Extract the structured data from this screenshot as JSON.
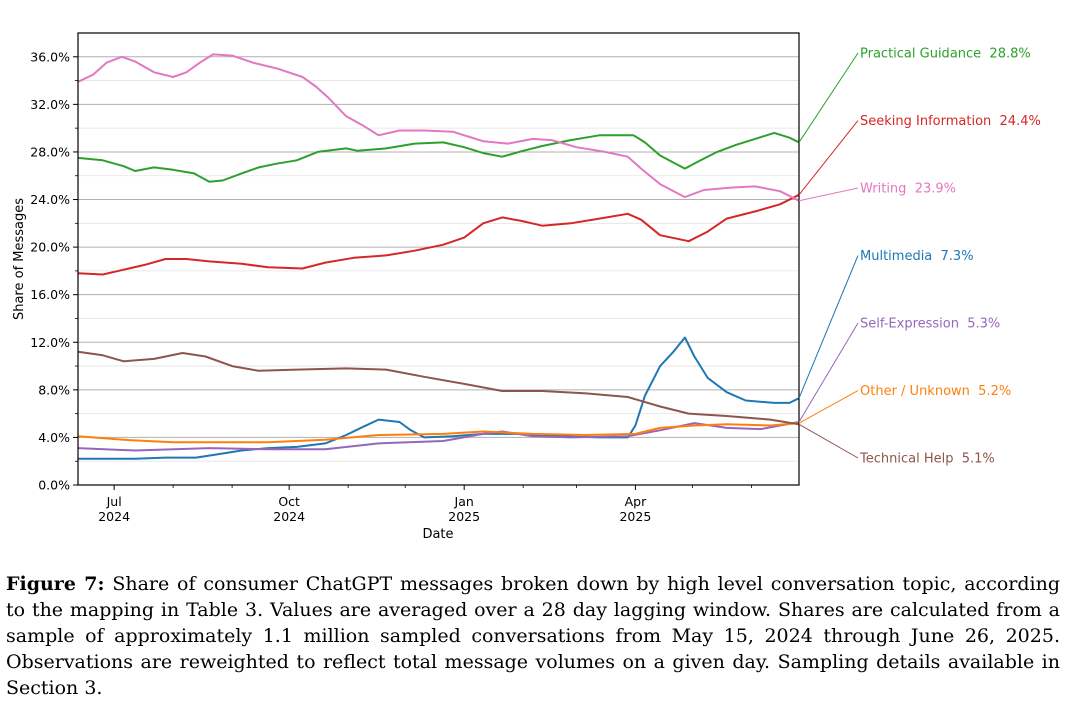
{
  "chart_data": {
    "type": "line",
    "xlabel": "Date",
    "ylabel": "Share of Messages",
    "x_range": [
      "2024-06-12",
      "2025-06-26"
    ],
    "ylim": [
      0,
      0.38
    ],
    "y_ticks": [
      0,
      0.04,
      0.08,
      0.12,
      0.16,
      0.2,
      0.24,
      0.28,
      0.32,
      0.36
    ],
    "y_tick_labels": [
      "0.0%",
      "4.0%",
      "8.0%",
      "12.0%",
      "16.0%",
      "20.0%",
      "24.0%",
      "28.0%",
      "32.0%",
      "36.0%"
    ],
    "x_major_ticks": [
      {
        "date": "2024-07-01",
        "label1": "Jul",
        "label2": "2024"
      },
      {
        "date": "2024-10-01",
        "label1": "Oct",
        "label2": "2024"
      },
      {
        "date": "2025-01-01",
        "label1": "Jan",
        "label2": "2025"
      },
      {
        "date": "2025-04-01",
        "label1": "Apr",
        "label2": "2025"
      }
    ],
    "x_minor_ticks": [
      "2024-08-01",
      "2024-09-01",
      "2024-11-01",
      "2024-12-01",
      "2025-02-01",
      "2025-03-01",
      "2025-05-01",
      "2025-06-01"
    ],
    "grid": "horizontal",
    "legend": "right-side labels",
    "series": [
      {
        "name": "Practical Guidance",
        "end_label": "Practical Guidance  28.8%",
        "color": "#2ca02c",
        "points": [
          [
            "2024-06-12",
            0.275
          ],
          [
            "2024-06-25",
            0.273
          ],
          [
            "2024-07-06",
            0.268
          ],
          [
            "2024-07-12",
            0.264
          ],
          [
            "2024-07-22",
            0.267
          ],
          [
            "2024-08-01",
            0.265
          ],
          [
            "2024-08-12",
            0.262
          ],
          [
            "2024-08-20",
            0.255
          ],
          [
            "2024-08-27",
            0.256
          ],
          [
            "2024-09-06",
            0.262
          ],
          [
            "2024-09-15",
            0.267
          ],
          [
            "2024-09-24",
            0.27
          ],
          [
            "2024-10-05",
            0.273
          ],
          [
            "2024-10-16",
            0.28
          ],
          [
            "2024-10-31",
            0.283
          ],
          [
            "2024-11-06",
            0.281
          ],
          [
            "2024-11-21",
            0.283
          ],
          [
            "2024-12-06",
            0.287
          ],
          [
            "2024-12-21",
            0.288
          ],
          [
            "2025-01-01",
            0.284
          ],
          [
            "2025-01-11",
            0.279
          ],
          [
            "2025-01-21",
            0.276
          ],
          [
            "2025-02-01",
            0.281
          ],
          [
            "2025-02-11",
            0.285
          ],
          [
            "2025-02-26",
            0.29
          ],
          [
            "2025-03-13",
            0.294
          ],
          [
            "2025-03-31",
            0.294
          ],
          [
            "2025-04-06",
            0.288
          ],
          [
            "2025-04-14",
            0.277
          ],
          [
            "2025-04-27",
            0.266
          ],
          [
            "2025-05-04",
            0.272
          ],
          [
            "2025-05-14",
            0.28
          ],
          [
            "2025-05-24",
            0.286
          ],
          [
            "2025-06-03",
            0.291
          ],
          [
            "2025-06-13",
            0.296
          ],
          [
            "2025-06-21",
            0.292
          ],
          [
            "2025-06-26",
            0.288
          ]
        ]
      },
      {
        "name": "Seeking Information",
        "end_label": "Seeking Information  24.4%",
        "color": "#d62728",
        "points": [
          [
            "2024-06-12",
            0.178
          ],
          [
            "2024-06-25",
            0.177
          ],
          [
            "2024-07-06",
            0.181
          ],
          [
            "2024-07-17",
            0.185
          ],
          [
            "2024-07-28",
            0.19
          ],
          [
            "2024-08-08",
            0.19
          ],
          [
            "2024-08-20",
            0.188
          ],
          [
            "2024-09-06",
            0.186
          ],
          [
            "2024-09-20",
            0.183
          ],
          [
            "2024-10-08",
            0.182
          ],
          [
            "2024-10-20",
            0.187
          ],
          [
            "2024-11-04",
            0.191
          ],
          [
            "2024-11-21",
            0.193
          ],
          [
            "2024-12-06",
            0.197
          ],
          [
            "2024-12-21",
            0.202
          ],
          [
            "2025-01-01",
            0.208
          ],
          [
            "2025-01-11",
            0.22
          ],
          [
            "2025-01-21",
            0.225
          ],
          [
            "2025-01-31",
            0.222
          ],
          [
            "2025-02-11",
            0.218
          ],
          [
            "2025-02-26",
            0.22
          ],
          [
            "2025-03-13",
            0.224
          ],
          [
            "2025-03-28",
            0.228
          ],
          [
            "2025-04-04",
            0.223
          ],
          [
            "2025-04-14",
            0.21
          ],
          [
            "2025-04-29",
            0.205
          ],
          [
            "2025-05-09",
            0.213
          ],
          [
            "2025-05-19",
            0.224
          ],
          [
            "2025-06-03",
            0.23
          ],
          [
            "2025-06-16",
            0.236
          ],
          [
            "2025-06-26",
            0.244
          ]
        ]
      },
      {
        "name": "Writing",
        "end_label": "Writing  23.9%",
        "color": "#e377c2",
        "points": [
          [
            "2024-06-12",
            0.339
          ],
          [
            "2024-06-20",
            0.345
          ],
          [
            "2024-06-27",
            0.355
          ],
          [
            "2024-07-05",
            0.36
          ],
          [
            "2024-07-12",
            0.356
          ],
          [
            "2024-07-22",
            0.347
          ],
          [
            "2024-08-01",
            0.343
          ],
          [
            "2024-08-08",
            0.347
          ],
          [
            "2024-08-15",
            0.355
          ],
          [
            "2024-08-22",
            0.362
          ],
          [
            "2024-09-01",
            0.361
          ],
          [
            "2024-09-12",
            0.355
          ],
          [
            "2024-09-25",
            0.35
          ],
          [
            "2024-10-08",
            0.343
          ],
          [
            "2024-10-15",
            0.335
          ],
          [
            "2024-10-22",
            0.325
          ],
          [
            "2024-10-31",
            0.31
          ],
          [
            "2024-11-09",
            0.302
          ],
          [
            "2024-11-17",
            0.294
          ],
          [
            "2024-11-28",
            0.298
          ],
          [
            "2024-12-11",
            0.298
          ],
          [
            "2024-12-26",
            0.297
          ],
          [
            "2025-01-03",
            0.293
          ],
          [
            "2025-01-11",
            0.289
          ],
          [
            "2025-01-24",
            0.287
          ],
          [
            "2025-02-06",
            0.291
          ],
          [
            "2025-02-16",
            0.29
          ],
          [
            "2025-03-01",
            0.284
          ],
          [
            "2025-03-16",
            0.28
          ],
          [
            "2025-03-28",
            0.276
          ],
          [
            "2025-04-04",
            0.266
          ],
          [
            "2025-04-14",
            0.253
          ],
          [
            "2025-04-27",
            0.242
          ],
          [
            "2025-05-07",
            0.248
          ],
          [
            "2025-05-21",
            0.25
          ],
          [
            "2025-06-03",
            0.251
          ],
          [
            "2025-06-16",
            0.247
          ],
          [
            "2025-06-26",
            0.239
          ]
        ]
      },
      {
        "name": "Multimedia",
        "end_label": "Multimedia  7.3%",
        "color": "#1f77b4",
        "points": [
          [
            "2024-06-12",
            0.022
          ],
          [
            "2024-06-25",
            0.022
          ],
          [
            "2024-07-12",
            0.022
          ],
          [
            "2024-07-28",
            0.023
          ],
          [
            "2024-08-13",
            0.023
          ],
          [
            "2024-08-25",
            0.026
          ],
          [
            "2024-09-06",
            0.029
          ],
          [
            "2024-09-20",
            0.031
          ],
          [
            "2024-10-05",
            0.032
          ],
          [
            "2024-10-20",
            0.035
          ],
          [
            "2024-10-31",
            0.042
          ],
          [
            "2024-11-09",
            0.049
          ],
          [
            "2024-11-17",
            0.055
          ],
          [
            "2024-11-28",
            0.053
          ],
          [
            "2024-12-04",
            0.046
          ],
          [
            "2024-12-11",
            0.04
          ],
          [
            "2024-12-26",
            0.041
          ],
          [
            "2025-01-11",
            0.043
          ],
          [
            "2025-01-31",
            0.043
          ],
          [
            "2025-02-21",
            0.041
          ],
          [
            "2025-03-13",
            0.04
          ],
          [
            "2025-03-28",
            0.04
          ],
          [
            "2025-04-01",
            0.05
          ],
          [
            "2025-04-06",
            0.075
          ],
          [
            "2025-04-14",
            0.1
          ],
          [
            "2025-04-21",
            0.112
          ],
          [
            "2025-04-27",
            0.124
          ],
          [
            "2025-05-02",
            0.108
          ],
          [
            "2025-05-09",
            0.09
          ],
          [
            "2025-05-19",
            0.078
          ],
          [
            "2025-05-29",
            0.071
          ],
          [
            "2025-06-13",
            0.069
          ],
          [
            "2025-06-21",
            0.069
          ],
          [
            "2025-06-26",
            0.073
          ]
        ]
      },
      {
        "name": "Self-Expression",
        "end_label": "Self-Expression  5.3%",
        "color": "#9467bd",
        "points": [
          [
            "2024-06-12",
            0.031
          ],
          [
            "2024-07-12",
            0.029
          ],
          [
            "2024-08-20",
            0.031
          ],
          [
            "2024-09-20",
            0.03
          ],
          [
            "2024-10-20",
            0.03
          ],
          [
            "2024-11-17",
            0.035
          ],
          [
            "2024-12-21",
            0.037
          ],
          [
            "2025-01-11",
            0.043
          ],
          [
            "2025-01-21",
            0.045
          ],
          [
            "2025-02-06",
            0.041
          ],
          [
            "2025-02-26",
            0.04
          ],
          [
            "2025-03-28",
            0.041
          ],
          [
            "2025-04-14",
            0.046
          ],
          [
            "2025-05-02",
            0.052
          ],
          [
            "2025-05-19",
            0.048
          ],
          [
            "2025-06-06",
            0.047
          ],
          [
            "2025-06-26",
            0.053
          ]
        ]
      },
      {
        "name": "Other / Unknown",
        "end_label": "Other / Unknown  5.2%",
        "color": "#ff7f0e",
        "points": [
          [
            "2024-06-12",
            0.041
          ],
          [
            "2024-07-06",
            0.038
          ],
          [
            "2024-08-01",
            0.036
          ],
          [
            "2024-08-25",
            0.036
          ],
          [
            "2024-09-20",
            0.036
          ],
          [
            "2024-10-20",
            0.038
          ],
          [
            "2024-11-17",
            0.042
          ],
          [
            "2024-12-21",
            0.043
          ],
          [
            "2025-01-11",
            0.045
          ],
          [
            "2025-02-06",
            0.043
          ],
          [
            "2025-03-06",
            0.042
          ],
          [
            "2025-04-01",
            0.043
          ],
          [
            "2025-04-14",
            0.048
          ],
          [
            "2025-05-02",
            0.05
          ],
          [
            "2025-05-19",
            0.051
          ],
          [
            "2025-06-11",
            0.05
          ],
          [
            "2025-06-26",
            0.052
          ]
        ]
      },
      {
        "name": "Technical Help",
        "end_label": "Technical Help  5.1%",
        "color": "#8c564b",
        "points": [
          [
            "2024-06-12",
            0.112
          ],
          [
            "2024-06-25",
            0.109
          ],
          [
            "2024-07-06",
            0.104
          ],
          [
            "2024-07-22",
            0.106
          ],
          [
            "2024-08-06",
            0.111
          ],
          [
            "2024-08-18",
            0.108
          ],
          [
            "2024-09-01",
            0.1
          ],
          [
            "2024-09-15",
            0.096
          ],
          [
            "2024-10-05",
            0.097
          ],
          [
            "2024-10-31",
            0.098
          ],
          [
            "2024-11-21",
            0.097
          ],
          [
            "2024-12-11",
            0.091
          ],
          [
            "2025-01-01",
            0.085
          ],
          [
            "2025-01-21",
            0.079
          ],
          [
            "2025-02-11",
            0.079
          ],
          [
            "2025-03-06",
            0.077
          ],
          [
            "2025-03-28",
            0.074
          ],
          [
            "2025-04-14",
            0.066
          ],
          [
            "2025-04-29",
            0.06
          ],
          [
            "2025-05-19",
            0.058
          ],
          [
            "2025-06-11",
            0.055
          ],
          [
            "2025-06-26",
            0.051
          ]
        ]
      }
    ]
  },
  "caption": {
    "label": "Figure 7:",
    "text": " Share of consumer ChatGPT messages broken down by high level conversation topic, according to the mapping in Table 3. Values are averaged over a 28 day lagging window. Shares are calculated from a sample of approximately 1.1 million sampled conversations from May 15, 2024 through June 26, 2025. Observations are reweighted to reflect total message volumes on a given day. Sampling details available in Section 3."
  }
}
